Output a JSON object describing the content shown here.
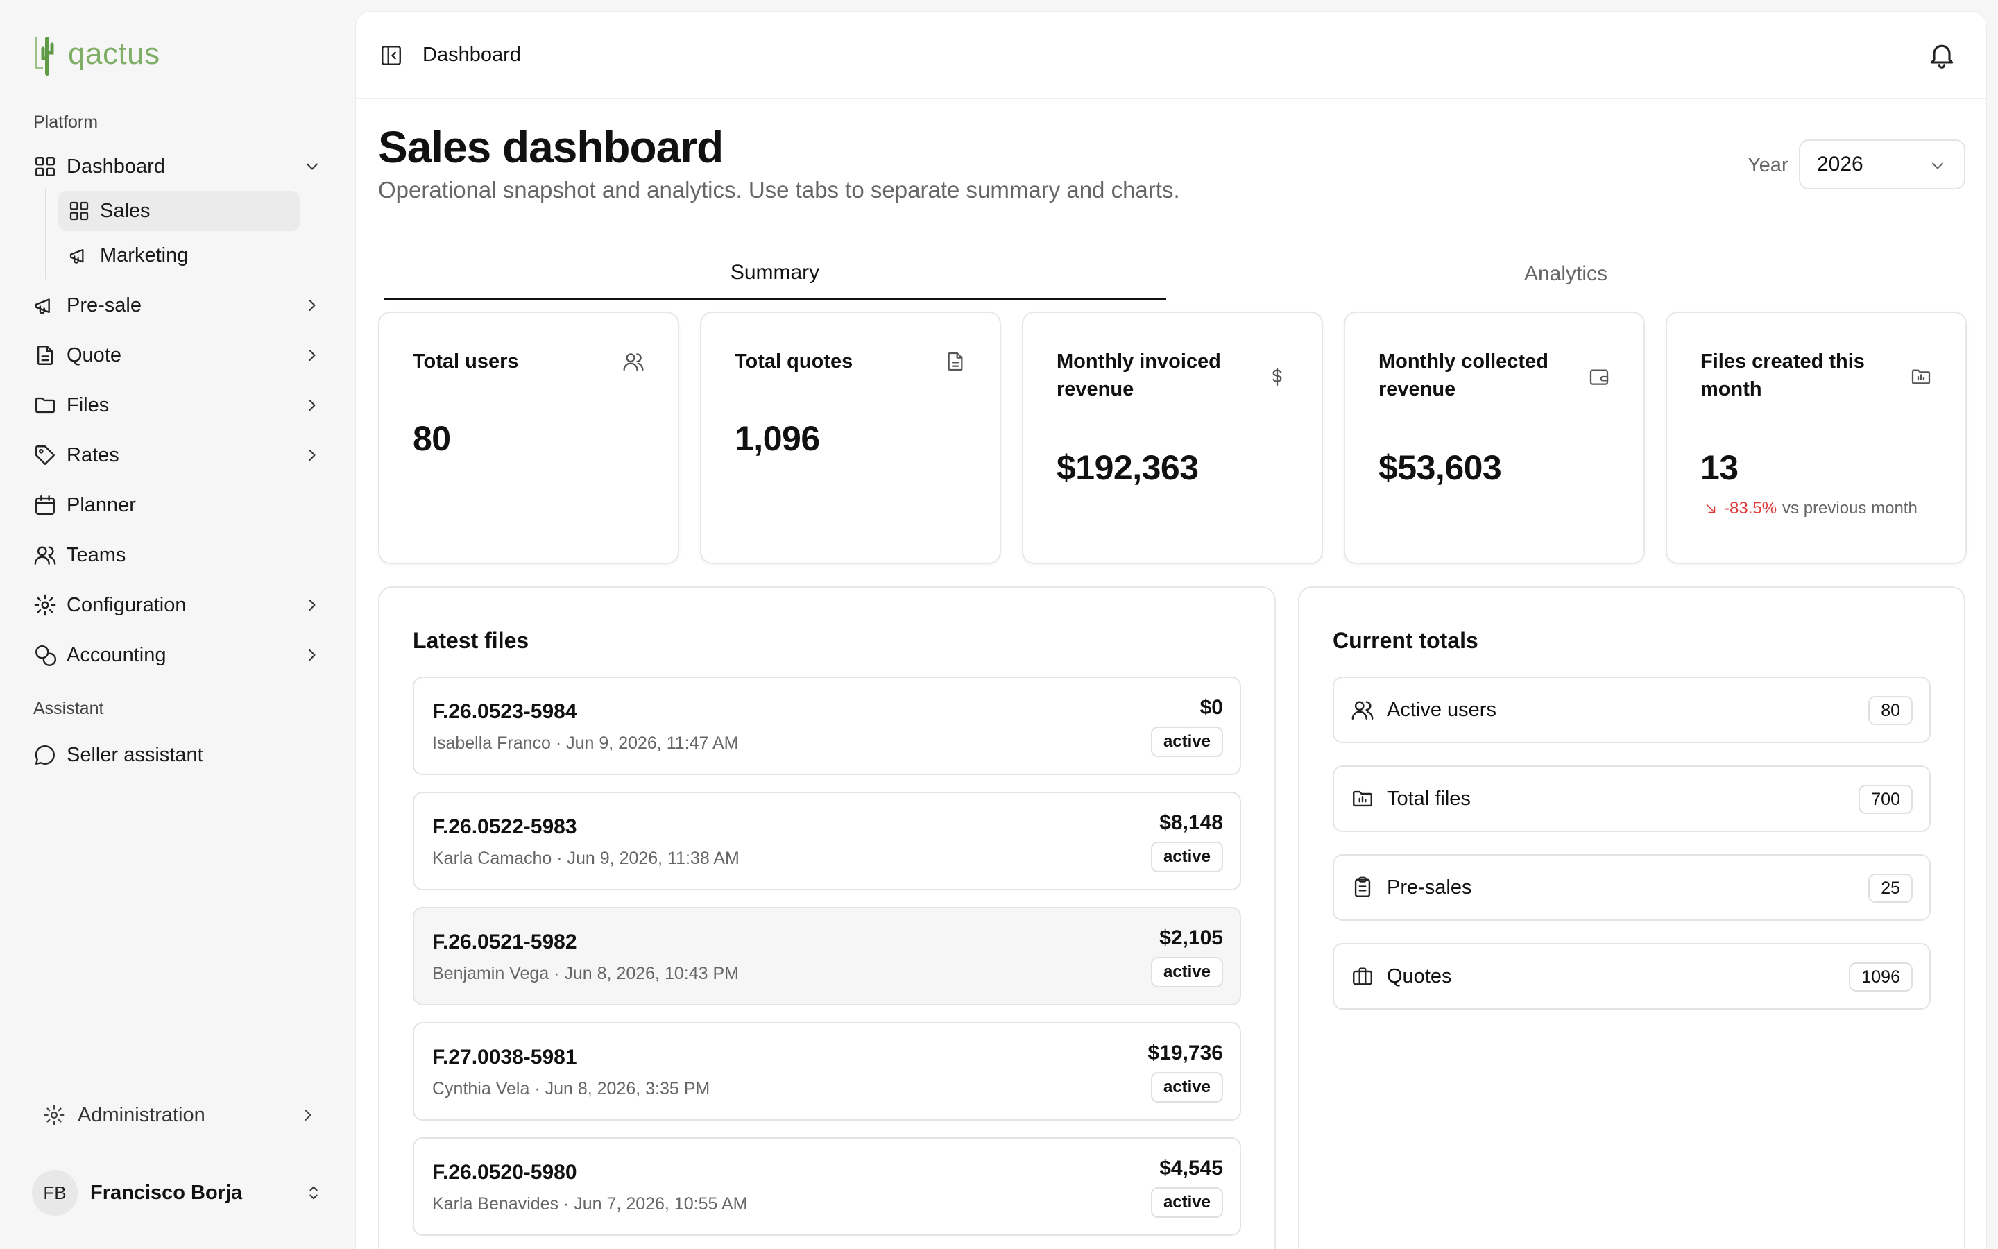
{
  "brand": {
    "name": "qactus"
  },
  "sidebar": {
    "sections": {
      "platform": "Platform",
      "assistant": "Assistant"
    },
    "nav": {
      "dashboard": "Dashboard",
      "sales": "Sales",
      "marketing": "Marketing",
      "presale": "Pre-sale",
      "quote": "Quote",
      "files": "Files",
      "rates": "Rates",
      "planner": "Planner",
      "teams": "Teams",
      "configuration": "Configuration",
      "accounting": "Accounting",
      "seller_assistant": "Seller assistant"
    },
    "administration": "Administration",
    "user": {
      "initials": "FB",
      "name": "Francisco Borja"
    }
  },
  "topbar": {
    "breadcrumb": "Dashboard"
  },
  "header": {
    "title": "Sales dashboard",
    "subtitle": "Operational snapshot and analytics. Use tabs to separate summary and charts.",
    "year_label": "Year",
    "year_value": "2026"
  },
  "tabs": {
    "summary": "Summary",
    "analytics": "Analytics"
  },
  "stats": {
    "total_users": {
      "label": "Total users",
      "value": "80"
    },
    "total_quotes": {
      "label": "Total quotes",
      "value": "1,096"
    },
    "monthly_invoiced": {
      "label": "Monthly invoiced revenue",
      "value": "$192,363"
    },
    "monthly_collected": {
      "label": "Monthly collected revenue",
      "value": "$53,603"
    },
    "files_created": {
      "label": "Files created this month",
      "value": "13",
      "delta": "-83.5%",
      "delta_suffix": "vs previous month"
    }
  },
  "latest_files": {
    "title": "Latest files",
    "items": [
      {
        "id": "F.26.0523-5984",
        "meta": "Isabella Franco · Jun 9, 2026, 11:47 AM",
        "amount": "$0",
        "status": "active"
      },
      {
        "id": "F.26.0522-5983",
        "meta": "Karla Camacho · Jun 9, 2026, 11:38 AM",
        "amount": "$8,148",
        "status": "active"
      },
      {
        "id": "F.26.0521-5982",
        "meta": "Benjamin Vega · Jun 8, 2026, 10:43 PM",
        "amount": "$2,105",
        "status": "active"
      },
      {
        "id": "F.27.0038-5981",
        "meta": "Cynthia Vela · Jun 8, 2026, 3:35 PM",
        "amount": "$19,736",
        "status": "active"
      },
      {
        "id": "F.26.0520-5980",
        "meta": "Karla Benavides · Jun 7, 2026, 10:55 AM",
        "amount": "$4,545",
        "status": "active"
      }
    ]
  },
  "current_totals": {
    "title": "Current totals",
    "items": [
      {
        "label": "Active users",
        "count": "80"
      },
      {
        "label": "Total files",
        "count": "700"
      },
      {
        "label": "Pre-sales",
        "count": "25"
      },
      {
        "label": "Quotes",
        "count": "1096"
      }
    ]
  }
}
